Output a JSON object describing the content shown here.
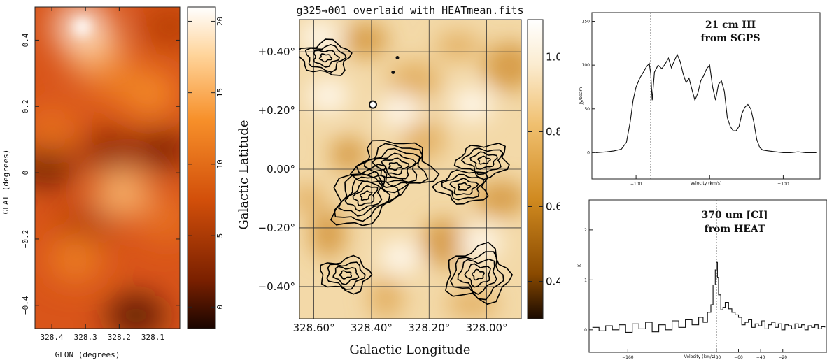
{
  "chart_data": [
    {
      "type": "heatmap",
      "title": "",
      "xlabel": "GLON (degrees)",
      "ylabel": "GLAT (degrees)",
      "x_ticks": [
        "328.4",
        "328.3",
        "328.2",
        "328.1"
      ],
      "x_tick_values": [
        328.4,
        328.3,
        328.2,
        328.1
      ],
      "xlim": [
        328.45,
        328.02
      ],
      "y_ticks": [
        "0.4",
        "0.2",
        "0",
        "−0.2",
        "−0.4"
      ],
      "y_tick_values": [
        0.4,
        0.2,
        0.0,
        -0.2,
        -0.4
      ],
      "ylim": [
        -0.47,
        0.5
      ],
      "colorbar_ticks": [
        "0",
        "5",
        "10",
        "15",
        "20"
      ],
      "colorbar_tick_values": [
        0,
        5,
        10,
        15,
        20
      ],
      "colorbar_range": [
        -1.5,
        21
      ],
      "colormap": [
        "#1a0500",
        "#7a2000",
        "#d24f0a",
        "#f7902a",
        "#ffd49a",
        "#ffffff"
      ],
      "sources": [
        {
          "x": 328.31,
          "y": 0.44,
          "value": 21
        },
        {
          "x": 328.27,
          "y": 0.36,
          "value": 16
        },
        {
          "x": 328.19,
          "y": -0.06,
          "value": 15
        },
        {
          "x": 328.33,
          "y": -0.26,
          "value": 11
        },
        {
          "x": 328.11,
          "y": 0.24,
          "value": 12
        },
        {
          "x": 328.4,
          "y": 0.13,
          "value": 10
        },
        {
          "x": 328.06,
          "y": -0.14,
          "value": 10
        },
        {
          "x": 328.22,
          "y": 0.29,
          "value": 11
        }
      ],
      "minima": [
        {
          "x": 328.42,
          "y": 0.02,
          "value": 2
        },
        {
          "x": 328.23,
          "y": 0.07,
          "value": 4
        },
        {
          "x": 328.07,
          "y": 0.07,
          "value": 3
        },
        {
          "x": 328.15,
          "y": -0.43,
          "value": 1
        },
        {
          "x": 328.3,
          "y": -0.16,
          "value": 6
        },
        {
          "x": 328.05,
          "y": 0.44,
          "value": 6
        }
      ]
    },
    {
      "type": "heatmap",
      "title": "g325→001 overlaid with HEATmean.fits",
      "xlabel": "Galactic Longitude",
      "ylabel": "Galactic Latitude",
      "x_ticks": [
        "328.60°",
        "328.40°",
        "328.20°",
        "328.00°"
      ],
      "x_tick_values": [
        328.6,
        328.4,
        328.2,
        328.0
      ],
      "xlim": [
        328.65,
        327.88
      ],
      "y_ticks": [
        "+0.40°",
        "+0.20°",
        "0.00°",
        "−0.20°",
        "−0.40°"
      ],
      "y_tick_values": [
        0.4,
        0.2,
        0.0,
        -0.2,
        -0.4
      ],
      "ylim": [
        -0.51,
        0.51
      ],
      "colorbar_ticks": [
        "0.40",
        "0.60",
        "0.80",
        "1.00"
      ],
      "colorbar_tick_values": [
        0.4,
        0.6,
        0.8,
        1.0
      ],
      "colorbar_range": [
        0.3,
        1.1
      ],
      "colormap": [
        "#1a0a00",
        "#8a4a00",
        "#d08a20",
        "#f0c070",
        "#fbecd0",
        "#ffffff"
      ],
      "grid": true,
      "contour_peaks": [
        {
          "x": 328.42,
          "y": -0.09
        },
        {
          "x": 328.32,
          "y": 0.01
        },
        {
          "x": 328.08,
          "y": -0.06
        },
        {
          "x": 328.01,
          "y": 0.03
        },
        {
          "x": 328.03,
          "y": -0.36
        },
        {
          "x": 328.49,
          "y": -0.36
        },
        {
          "x": 328.56,
          "y": 0.38
        }
      ]
    },
    {
      "type": "line",
      "title": "21 cm HI from SGPS",
      "title_lines": [
        "21 cm HI",
        "from SGPS"
      ],
      "xlabel": "Velocity (km/s)",
      "ylabel": "Jy/beam",
      "xlim": [
        -160,
        150
      ],
      "ylim": [
        -30,
        160
      ],
      "x_ticks": [
        "−100",
        "0",
        "+100"
      ],
      "x_tick_values": [
        -100,
        0,
        100
      ],
      "y_ticks": [
        "0",
        "50",
        "100",
        "150"
      ],
      "y_tick_values": [
        0,
        50,
        100,
        150
      ],
      "vline_x": -80,
      "x": [
        -155,
        -140,
        -130,
        -120,
        -113,
        -108,
        -104,
        -100,
        -95,
        -90,
        -86,
        -82,
        -80,
        -78,
        -75,
        -70,
        -65,
        -60,
        -56,
        -52,
        -48,
        -44,
        -40,
        -36,
        -32,
        -28,
        -24,
        -20,
        -16,
        -12,
        -8,
        -4,
        0,
        4,
        8,
        12,
        16,
        20,
        24,
        28,
        32,
        36,
        40,
        44,
        48,
        52,
        56,
        60,
        64,
        68,
        72,
        80,
        90,
        100,
        110,
        120,
        130,
        145
      ],
      "y": [
        0,
        1,
        2,
        4,
        12,
        35,
        60,
        75,
        85,
        92,
        98,
        102,
        90,
        60,
        92,
        100,
        96,
        102,
        108,
        97,
        105,
        112,
        104,
        90,
        80,
        85,
        72,
        60,
        68,
        82,
        88,
        96,
        100,
        75,
        60,
        78,
        82,
        70,
        40,
        30,
        25,
        25,
        30,
        45,
        52,
        55,
        50,
        35,
        15,
        6,
        3,
        2,
        1,
        0,
        0,
        1,
        0,
        0
      ]
    },
    {
      "type": "line",
      "title": "370 um [CI] from HEAT",
      "title_lines": [
        "370 um [CI]",
        "from HEAT"
      ],
      "xlabel": "Velocity (km/s)",
      "ylabel": "K",
      "xlim": [
        -195,
        20
      ],
      "ylim": [
        -0.45,
        2.6
      ],
      "x_ticks": [
        "−160",
        "−80",
        "−60",
        "−40",
        "−20"
      ],
      "x_tick_values": [
        -160,
        -80,
        -60,
        -40,
        -20
      ],
      "y_ticks": [
        "0",
        "1",
        "2"
      ],
      "y_tick_values": [
        0,
        1,
        2
      ],
      "vline_x": -80,
      "x": [
        -192,
        -186,
        -180,
        -174,
        -168,
        -162,
        -156,
        -150,
        -144,
        -138,
        -132,
        -126,
        -120,
        -114,
        -108,
        -102,
        -96,
        -92,
        -88,
        -85,
        -83,
        -81,
        -80,
        -79,
        -78,
        -76,
        -74,
        -72,
        -69,
        -66,
        -63,
        -60,
        -57,
        -54,
        -51,
        -48,
        -45,
        -42,
        -39,
        -36,
        -33,
        -30,
        -27,
        -24,
        -21,
        -18,
        -15,
        -12,
        -9,
        -6,
        -3,
        0,
        3,
        6,
        9,
        12,
        15,
        18
      ],
      "y": [
        0.05,
        -0.02,
        0.08,
        0.0,
        0.1,
        -0.05,
        0.12,
        0.02,
        0.15,
        -0.04,
        0.1,
        0.0,
        0.18,
        0.05,
        0.2,
        0.1,
        0.25,
        0.15,
        0.35,
        0.5,
        0.9,
        1.2,
        1.35,
        1.05,
        0.7,
        0.4,
        0.45,
        0.55,
        0.42,
        0.35,
        0.3,
        0.25,
        0.1,
        0.15,
        0.2,
        0.05,
        0.12,
        0.08,
        0.18,
        0.02,
        0.1,
        0.15,
        0.05,
        0.12,
        0.0,
        0.1,
        0.08,
        0.02,
        0.12,
        0.05,
        0.1,
        0.0,
        0.08,
        0.05,
        0.1,
        0.02,
        0.06,
        0.05
      ]
    }
  ]
}
